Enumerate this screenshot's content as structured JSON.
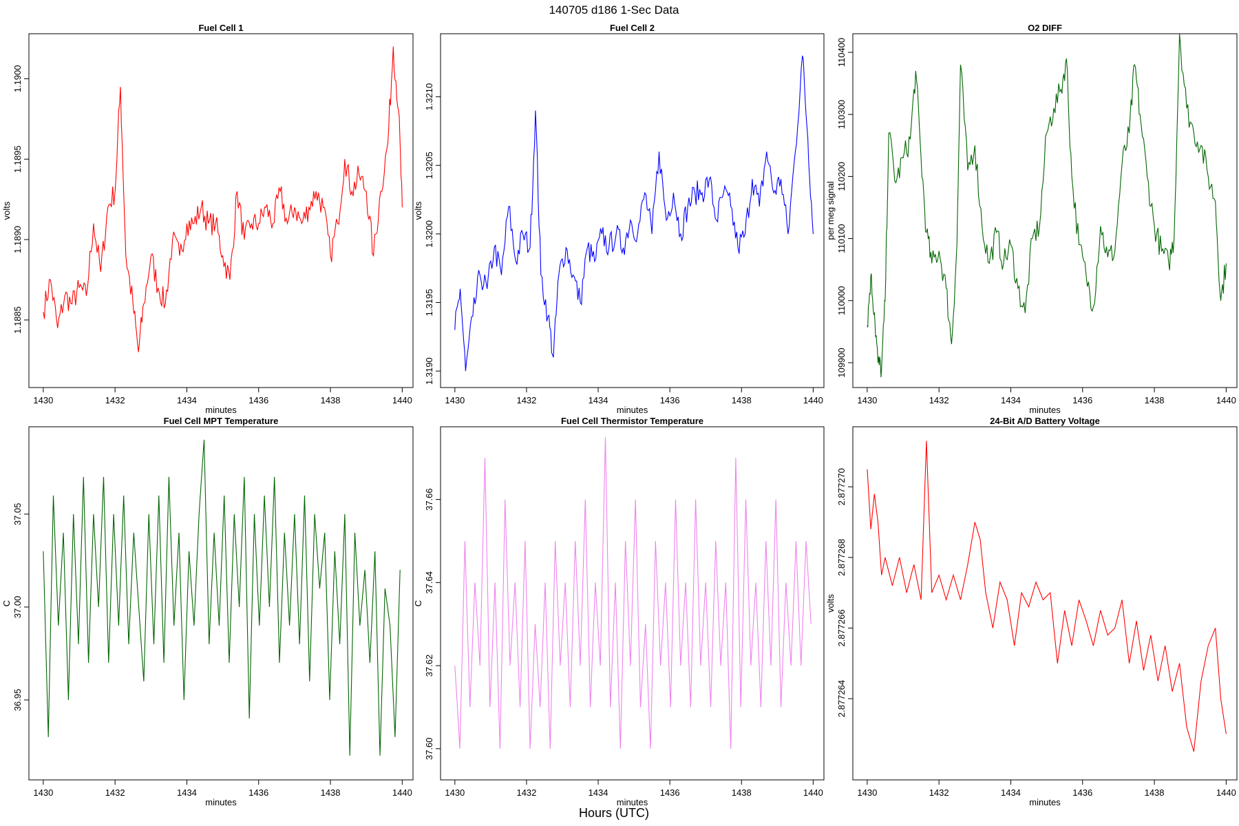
{
  "figure": {
    "title": "140705   d186   1-Sec Data",
    "bottom_label": "Hours (UTC)"
  },
  "chart_data": [
    {
      "type": "line",
      "title": "Fuel Cell 1",
      "xlabel": "minutes",
      "ylabel": "volts",
      "color": "#ff0000",
      "xlim": [
        1429.6,
        1440.3
      ],
      "ylim": [
        1.18808,
        1.19028
      ],
      "xticks": [
        "1430",
        "1432",
        "1434",
        "1436",
        "1438",
        "1440"
      ],
      "xtick_values": [
        1430,
        1432,
        1434,
        1436,
        1438,
        1440
      ],
      "yticks": [
        "1.1885",
        "1.1890",
        "1.1895",
        "1.1900"
      ],
      "ytick_values": [
        1.1885,
        1.189,
        1.1895,
        1.19
      ],
      "x": [
        1430,
        1430.2,
        1430.4,
        1430.6,
        1430.8,
        1431,
        1431.2,
        1431.4,
        1431.6,
        1431.8,
        1432,
        1432.15,
        1432.3,
        1432.5,
        1432.65,
        1432.8,
        1433,
        1433.2,
        1433.4,
        1433.6,
        1433.8,
        1434,
        1434.2,
        1434.4,
        1434.6,
        1434.8,
        1435,
        1435.2,
        1435.4,
        1435.6,
        1435.8,
        1436,
        1436.2,
        1436.4,
        1436.6,
        1436.8,
        1437,
        1437.2,
        1437.4,
        1437.6,
        1437.8,
        1438,
        1438.2,
        1438.4,
        1438.6,
        1438.8,
        1439,
        1439.2,
        1439.4,
        1439.6,
        1439.75,
        1439.9,
        1440
      ],
      "values": [
        1.18855,
        1.18875,
        1.18845,
        1.18865,
        1.1886,
        1.1887,
        1.18865,
        1.1891,
        1.1888,
        1.1892,
        1.1893,
        1.18995,
        1.1889,
        1.1886,
        1.1883,
        1.1886,
        1.1889,
        1.1887,
        1.1886,
        1.189,
        1.1889,
        1.1891,
        1.1891,
        1.1892,
        1.1891,
        1.1891,
        1.1889,
        1.18875,
        1.1893,
        1.189,
        1.1891,
        1.1891,
        1.1892,
        1.1891,
        1.1893,
        1.1891,
        1.1892,
        1.1891,
        1.1892,
        1.1893,
        1.1892,
        1.1889,
        1.1891,
        1.1895,
        1.1893,
        1.1894,
        1.1893,
        1.1889,
        1.1893,
        1.1896,
        1.1902,
        1.1898,
        1.1892
      ]
    },
    {
      "type": "line",
      "title": "Fuel Cell 2",
      "xlabel": "minutes",
      "ylabel": "volts",
      "color": "#0000ff",
      "xlim": [
        1429.6,
        1440.3
      ],
      "ylim": [
        1.31888,
        1.32146
      ],
      "xticks": [
        "1430",
        "1432",
        "1434",
        "1436",
        "1438",
        "1440"
      ],
      "xtick_values": [
        1430,
        1432,
        1434,
        1436,
        1438,
        1440
      ],
      "yticks": [
        "1.3190",
        "1.3195",
        "1.3200",
        "1.3205",
        "1.3210"
      ],
      "ytick_values": [
        1.319,
        1.3195,
        1.32,
        1.3205,
        1.321
      ],
      "x": [
        1430,
        1430.15,
        1430.3,
        1430.5,
        1430.7,
        1430.9,
        1431.1,
        1431.3,
        1431.5,
        1431.7,
        1431.9,
        1432.1,
        1432.25,
        1432.4,
        1432.6,
        1432.75,
        1432.9,
        1433.1,
        1433.3,
        1433.5,
        1433.7,
        1433.9,
        1434.1,
        1434.3,
        1434.5,
        1434.7,
        1434.9,
        1435.1,
        1435.3,
        1435.5,
        1435.7,
        1435.9,
        1436.1,
        1436.3,
        1436.5,
        1436.7,
        1436.9,
        1437.1,
        1437.3,
        1437.5,
        1437.7,
        1437.9,
        1438.1,
        1438.3,
        1438.5,
        1438.7,
        1438.9,
        1439.1,
        1439.3,
        1439.5,
        1439.7,
        1439.85,
        1440
      ],
      "values": [
        1.3193,
        1.3196,
        1.319,
        1.3194,
        1.3197,
        1.3196,
        1.3199,
        1.3197,
        1.3202,
        1.3198,
        1.32,
        1.3199,
        1.3209,
        1.3197,
        1.3194,
        1.3191,
        1.3197,
        1.3199,
        1.3197,
        1.3195,
        1.3199,
        1.3198,
        1.32,
        1.3199,
        1.32,
        1.3199,
        1.3201,
        1.32,
        1.3203,
        1.32,
        1.3206,
        1.3201,
        1.3203,
        1.32,
        1.3202,
        1.3203,
        1.3203,
        1.3204,
        1.3201,
        1.3203,
        1.3202,
        1.3199,
        1.32,
        1.3204,
        1.3202,
        1.3206,
        1.3203,
        1.3204,
        1.32,
        1.3206,
        1.3213,
        1.3207,
        1.32
      ]
    },
    {
      "type": "line",
      "title": "O2 DIFF",
      "xlabel": "minutes",
      "ylabel": "per meg signal",
      "color": "#006400",
      "xlim": [
        1429.6,
        1440.3
      ],
      "ylim": [
        109860,
        110430
      ],
      "xticks": [
        "1430",
        "1432",
        "1434",
        "1436",
        "1438",
        "1440"
      ],
      "xtick_values": [
        1430,
        1432,
        1434,
        1436,
        1438,
        1440
      ],
      "yticks": [
        "109900",
        "110000",
        "110100",
        "110200",
        "110300",
        "110400"
      ],
      "ytick_values": [
        109900,
        110000,
        110100,
        110200,
        110300,
        110400
      ],
      "x": [
        1430,
        1430.1,
        1430.2,
        1430.3,
        1430.4,
        1430.5,
        1430.6,
        1430.8,
        1431,
        1431.2,
        1431.35,
        1431.5,
        1431.65,
        1431.8,
        1432,
        1432.2,
        1432.35,
        1432.5,
        1432.6,
        1432.8,
        1433,
        1433.2,
        1433.4,
        1433.6,
        1433.8,
        1434,
        1434.2,
        1434.4,
        1434.6,
        1434.8,
        1435,
        1435.2,
        1435.4,
        1435.55,
        1435.7,
        1435.9,
        1436.1,
        1436.3,
        1436.5,
        1436.7,
        1436.9,
        1437.1,
        1437.3,
        1437.45,
        1437.6,
        1437.8,
        1438,
        1438.2,
        1438.4,
        1438.55,
        1438.7,
        1438.9,
        1439.1,
        1439.3,
        1439.5,
        1439.7,
        1439.85,
        1440
      ],
      "values": [
        109960,
        110040,
        109980,
        109900,
        109890,
        110000,
        110270,
        110190,
        110230,
        110260,
        110370,
        110230,
        110110,
        110060,
        110080,
        110020,
        109930,
        110090,
        110380,
        110210,
        110250,
        110120,
        110060,
        110110,
        110060,
        110090,
        110020,
        109980,
        110100,
        110120,
        110270,
        110310,
        110340,
        110390,
        110200,
        110090,
        110040,
        109990,
        110120,
        110070,
        110080,
        110220,
        110270,
        110380,
        110300,
        110200,
        110120,
        110080,
        110060,
        110100,
        110430,
        110310,
        110270,
        110250,
        110200,
        110160,
        110000,
        110060
      ]
    },
    {
      "type": "line",
      "title": "Fuel Cell MPT Temperature",
      "xlabel": "minutes",
      "ylabel": "C",
      "color": "#006400",
      "xlim": [
        1429.6,
        1440.3
      ],
      "ylim": [
        36.907,
        37.097
      ],
      "xticks": [
        "1430",
        "1432",
        "1434",
        "1436",
        "1438",
        "1440"
      ],
      "xtick_values": [
        1430,
        1432,
        1434,
        1436,
        1438,
        1440
      ],
      "yticks": [
        "36.95",
        "37.00",
        "37.05"
      ],
      "ytick_values": [
        36.95,
        37.0,
        37.05
      ],
      "x": [
        1430,
        1430.14,
        1430.28,
        1430.42,
        1430.56,
        1430.7,
        1430.84,
        1430.98,
        1431.12,
        1431.26,
        1431.4,
        1431.54,
        1431.68,
        1431.82,
        1431.96,
        1432.1,
        1432.24,
        1432.38,
        1432.52,
        1432.66,
        1432.8,
        1432.94,
        1433.08,
        1433.22,
        1433.36,
        1433.5,
        1433.64,
        1433.78,
        1433.92,
        1434.06,
        1434.2,
        1434.34,
        1434.48,
        1434.62,
        1434.76,
        1434.9,
        1435.04,
        1435.18,
        1435.32,
        1435.46,
        1435.6,
        1435.74,
        1435.88,
        1436.02,
        1436.16,
        1436.3,
        1436.44,
        1436.58,
        1436.72,
        1436.86,
        1437,
        1437.14,
        1437.28,
        1437.42,
        1437.56,
        1437.7,
        1437.84,
        1437.98,
        1438.12,
        1438.26,
        1438.4,
        1438.54,
        1438.68,
        1438.82,
        1438.96,
        1439.1,
        1439.24,
        1439.38,
        1439.52,
        1439.66,
        1439.8,
        1439.94
      ],
      "values": [
        37.03,
        36.93,
        37.06,
        36.99,
        37.04,
        36.95,
        37.05,
        36.98,
        37.07,
        36.97,
        37.05,
        37.0,
        37.07,
        36.97,
        37.05,
        36.99,
        37.06,
        36.98,
        37.04,
        37.0,
        36.96,
        37.05,
        36.98,
        37.06,
        36.97,
        37.07,
        36.99,
        37.04,
        36.95,
        37.03,
        36.99,
        37.05,
        37.09,
        36.98,
        37.04,
        36.99,
        37.06,
        36.97,
        37.05,
        37.0,
        37.07,
        36.94,
        37.05,
        36.99,
        37.06,
        37.0,
        37.07,
        36.97,
        37.04,
        36.99,
        37.05,
        36.98,
        37.06,
        36.96,
        37.05,
        37.01,
        37.04,
        36.95,
        37.03,
        36.98,
        37.05,
        36.92,
        37.04,
        36.99,
        37.02,
        36.97,
        37.03,
        36.92,
        37.01,
        36.99,
        36.93,
        37.02
      ]
    },
    {
      "type": "line",
      "title": "Fuel Cell Thermistor Temperature",
      "xlabel": "minutes",
      "ylabel": "C",
      "color": "#ee82ee",
      "xlim": [
        1429.6,
        1440.3
      ],
      "ylim": [
        37.5925,
        37.6775
      ],
      "xticks": [
        "1430",
        "1432",
        "1434",
        "1436",
        "1438",
        "1440"
      ],
      "xtick_values": [
        1430,
        1432,
        1434,
        1436,
        1438,
        1440
      ],
      "yticks": [
        "37.60",
        "37.62",
        "37.64",
        "37.66"
      ],
      "ytick_values": [
        37.6,
        37.62,
        37.64,
        37.66
      ],
      "x": [
        1430,
        1430.14,
        1430.28,
        1430.42,
        1430.56,
        1430.7,
        1430.84,
        1430.98,
        1431.12,
        1431.26,
        1431.4,
        1431.54,
        1431.68,
        1431.82,
        1431.96,
        1432.1,
        1432.24,
        1432.38,
        1432.52,
        1432.66,
        1432.8,
        1432.94,
        1433.08,
        1433.22,
        1433.36,
        1433.5,
        1433.64,
        1433.78,
        1433.92,
        1434.06,
        1434.2,
        1434.34,
        1434.48,
        1434.62,
        1434.76,
        1434.9,
        1435.04,
        1435.18,
        1435.32,
        1435.46,
        1435.6,
        1435.74,
        1435.88,
        1436.02,
        1436.16,
        1436.3,
        1436.44,
        1436.58,
        1436.72,
        1436.86,
        1437,
        1437.14,
        1437.28,
        1437.42,
        1437.56,
        1437.7,
        1437.84,
        1437.98,
        1438.12,
        1438.26,
        1438.4,
        1438.54,
        1438.68,
        1438.82,
        1438.96,
        1439.1,
        1439.24,
        1439.38,
        1439.52,
        1439.66,
        1439.8,
        1439.94
      ],
      "values": [
        37.62,
        37.6,
        37.65,
        37.61,
        37.64,
        37.62,
        37.67,
        37.61,
        37.64,
        37.6,
        37.66,
        37.62,
        37.64,
        37.61,
        37.65,
        37.6,
        37.63,
        37.61,
        37.64,
        37.6,
        37.65,
        37.62,
        37.64,
        37.61,
        37.65,
        37.62,
        37.66,
        37.61,
        37.64,
        37.62,
        37.675,
        37.61,
        37.64,
        37.6,
        37.65,
        37.62,
        37.66,
        37.61,
        37.63,
        37.6,
        37.65,
        37.62,
        37.64,
        37.61,
        37.66,
        37.62,
        37.64,
        37.61,
        37.66,
        37.62,
        37.64,
        37.61,
        37.65,
        37.62,
        37.64,
        37.6,
        37.67,
        37.61,
        37.66,
        37.62,
        37.64,
        37.61,
        37.65,
        37.62,
        37.66,
        37.61,
        37.64,
        37.62,
        37.65,
        37.62,
        37.65,
        37.63
      ]
    },
    {
      "type": "line",
      "title": "24-Bit A/D Battery Voltage",
      "xlabel": "minutes",
      "ylabel": "volts",
      "color": "#ff0000",
      "xlim": [
        1429.6,
        1440.3
      ],
      "ylim": [
        2.8772617,
        2.8772717
      ],
      "xticks": [
        "1430",
        "1432",
        "1434",
        "1436",
        "1438",
        "1440"
      ],
      "xtick_values": [
        1430,
        1432,
        1434,
        1436,
        1438,
        1440
      ],
      "yticks": [
        "2.877264",
        "2.877266",
        "2.877268",
        "2.877270"
      ],
      "ytick_values": [
        2.877264,
        2.877266,
        2.877268,
        2.87727
      ],
      "x": [
        1430,
        1430.1,
        1430.2,
        1430.3,
        1430.4,
        1430.5,
        1430.7,
        1430.9,
        1431.1,
        1431.3,
        1431.5,
        1431.65,
        1431.8,
        1432,
        1432.2,
        1432.4,
        1432.6,
        1432.8,
        1433,
        1433.15,
        1433.3,
        1433.5,
        1433.7,
        1433.9,
        1434.1,
        1434.3,
        1434.5,
        1434.7,
        1434.9,
        1435.1,
        1435.3,
        1435.5,
        1435.7,
        1435.9,
        1436.1,
        1436.3,
        1436.5,
        1436.7,
        1436.9,
        1437.1,
        1437.3,
        1437.5,
        1437.7,
        1437.9,
        1438.1,
        1438.3,
        1438.5,
        1438.7,
        1438.9,
        1439.1,
        1439.3,
        1439.5,
        1439.7,
        1439.85,
        1440
      ],
      "values": [
        2.8772705,
        2.8772688,
        2.8772698,
        2.877269,
        2.8772675,
        2.877268,
        2.8772672,
        2.877268,
        2.877267,
        2.8772678,
        2.8772668,
        2.8772713,
        2.877267,
        2.8772675,
        2.8772668,
        2.8772675,
        2.8772668,
        2.8772678,
        2.877269,
        2.8772685,
        2.877267,
        2.877266,
        2.8772673,
        2.8772668,
        2.8772655,
        2.877267,
        2.8772666,
        2.8772673,
        2.8772668,
        2.877267,
        2.877265,
        2.8772665,
        2.8772655,
        2.8772668,
        2.8772662,
        2.8772655,
        2.8772665,
        2.8772658,
        2.877266,
        2.8772668,
        2.877265,
        2.8772662,
        2.8772648,
        2.8772658,
        2.8772645,
        2.8772655,
        2.8772642,
        2.877265,
        2.8772632,
        2.8772625,
        2.8772645,
        2.8772655,
        2.877266,
        2.877264,
        2.877263
      ]
    }
  ]
}
